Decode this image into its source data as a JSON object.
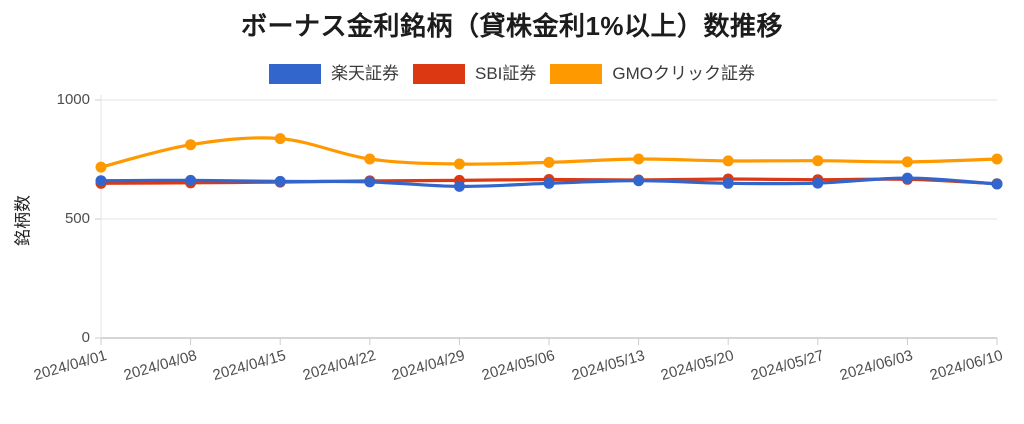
{
  "title": "ボーナス金利銘柄（貸株金利1%以上）数推移",
  "axes": {
    "y": {
      "title": "銘柄数",
      "tick_labels": [
        "0",
        "500",
        "1000"
      ]
    }
  },
  "chart_data": {
    "type": "line",
    "title": "ボーナス金利銘柄（貸株金利1%以上）数推移",
    "xlabel": "",
    "ylabel": "銘柄数",
    "ylim": [
      0,
      1000
    ],
    "yticks": [
      0,
      500,
      1000
    ],
    "grid": "horizontal-only",
    "legend_position": "top",
    "curve": "smooth",
    "x": [
      "2024/04/01",
      "2024/04/08",
      "2024/04/15",
      "2024/04/22",
      "2024/04/29",
      "2024/05/06",
      "2024/05/13",
      "2024/05/20",
      "2024/05/27",
      "2024/06/03",
      "2024/06/10"
    ],
    "series": [
      {
        "name": "楽天証券",
        "key": "rakuten",
        "color": "#3366CC",
        "values": [
          661,
          662,
          658,
          656,
          637,
          650,
          661,
          650,
          651,
          672,
          647
        ]
      },
      {
        "name": "SBI証券",
        "key": "sbi",
        "color": "#DC3912",
        "values": [
          650,
          652,
          655,
          660,
          662,
          666,
          664,
          668,
          665,
          667,
          648
        ]
      },
      {
        "name": "GMOクリック証券",
        "key": "gmo-click",
        "color": "#FF9900",
        "values": [
          718,
          812,
          838,
          752,
          731,
          738,
          752,
          744,
          745,
          740,
          752
        ]
      }
    ]
  },
  "colors": {
    "baseline": "#ababab",
    "gridline": "#e3e3e3",
    "tick": "#cccccc",
    "axis_text": "#4d4d4d"
  }
}
